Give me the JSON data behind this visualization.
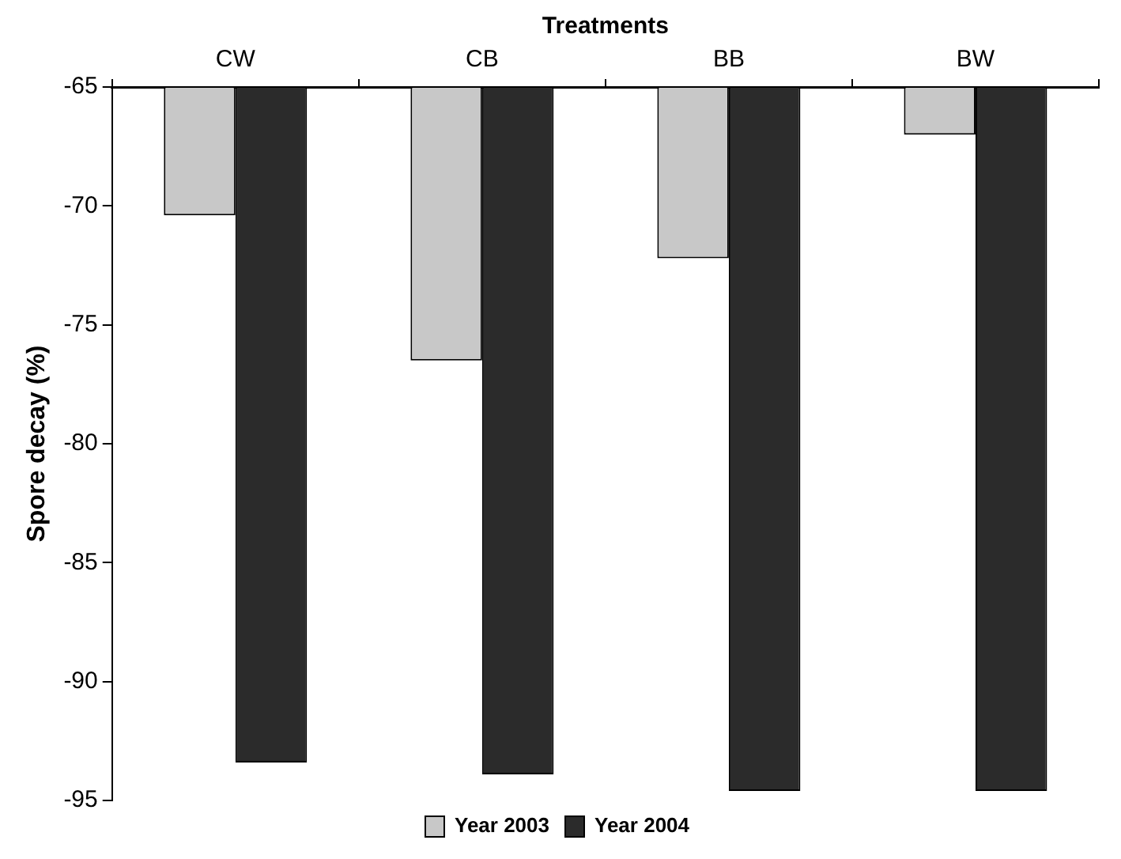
{
  "chart_data": {
    "type": "bar",
    "xlabel": "Treatments",
    "ylabel": "Spore decay (%)",
    "categories": [
      "CW",
      "CB",
      "BB",
      "BW"
    ],
    "series": [
      {
        "name": "Year 2003",
        "color": "#c8c8c8",
        "values": [
          -70.4,
          -76.5,
          -72.2,
          -67.0
        ]
      },
      {
        "name": "Year 2004",
        "color": "#2b2b2b",
        "values": [
          -93.4,
          -93.9,
          -94.6,
          -94.6
        ]
      }
    ],
    "ylim": [
      -95,
      -65
    ],
    "yticks": [
      -95,
      -90,
      -85,
      -80,
      -75,
      -70,
      -65
    ],
    "grid": false,
    "legend": "bottom"
  }
}
